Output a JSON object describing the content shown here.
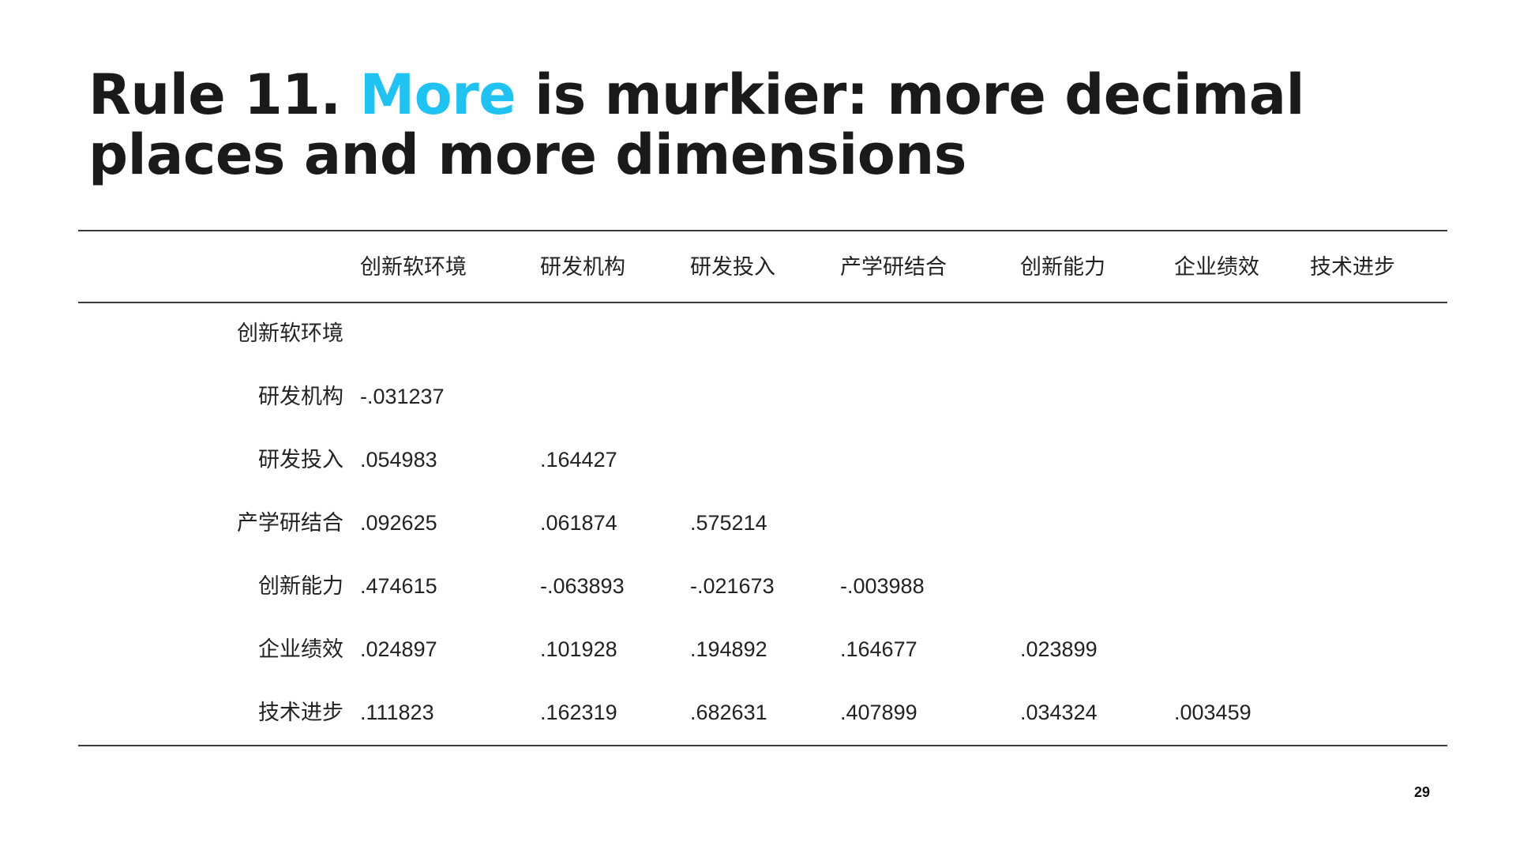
{
  "title": {
    "prefix": "Rule 11. ",
    "highlight": "More",
    "rest": " is murkier: more decimal places and more dimensions",
    "highlight_color": "#1fc2f0"
  },
  "table": {
    "columns": [
      "创新软环境",
      "研发机构",
      "研发投入",
      "产学研结合",
      "创新能力",
      "企业绩效",
      "技术进步"
    ],
    "rows": [
      {
        "label": "创新软环境",
        "values": []
      },
      {
        "label": "研发机构",
        "values": [
          "-.031237"
        ]
      },
      {
        "label": "研发投入",
        "values": [
          ".054983",
          ".164427"
        ]
      },
      {
        "label": "产学研结合",
        "values": [
          ".092625",
          ".061874",
          ".575214"
        ]
      },
      {
        "label": "创新能力",
        "values": [
          ".474615",
          "-.063893",
          "-.021673",
          "-.003988"
        ]
      },
      {
        "label": "企业绩效",
        "values": [
          ".024897",
          ".101928",
          ".194892",
          ".164677",
          ".023899"
        ]
      },
      {
        "label": "技术进步",
        "values": [
          ".111823",
          ".162319",
          ".682631",
          ".407899",
          ".034324",
          ".003459"
        ]
      }
    ]
  },
  "page_number": "29"
}
